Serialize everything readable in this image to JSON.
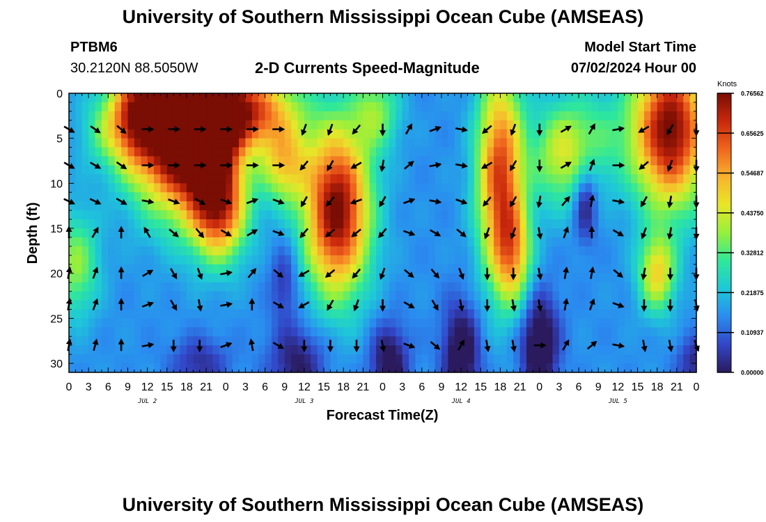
{
  "header": {
    "title": "University of Southern Mississippi Ocean Cube (AMSEAS)",
    "station_id": "PTBM6",
    "station_coords": "30.2120N  88.5050W",
    "product": "2-D Currents Speed-Magnitude",
    "model_start_label": "Model Start Time",
    "model_start_value": "07/02/2024 Hour 00"
  },
  "footer": {
    "title_repeat": "University of Southern Mississippi Ocean Cube (AMSEAS)"
  },
  "chart_data": {
    "type": "heatmap",
    "title": "2-D Currents Speed-Magnitude",
    "xlabel": "Forecast Time(Z)",
    "ylabel": "Depth (ft)",
    "x_hours_range": [
      0,
      96
    ],
    "ylim": [
      0,
      31
    ],
    "x_tick_labels": [
      "0",
      "3",
      "6",
      "9",
      "12",
      "15",
      "18",
      "21",
      "0",
      "3",
      "6",
      "9",
      "12",
      "15",
      "18",
      "21",
      "0",
      "3",
      "6",
      "9",
      "12",
      "15",
      "18",
      "21",
      "0",
      "3",
      "6",
      "9",
      "12",
      "15",
      "18",
      "21",
      "0"
    ],
    "y_ticks": [
      0,
      5,
      10,
      15,
      20,
      25,
      30
    ],
    "y_tick_labels": [
      "0",
      "5",
      "10",
      "15",
      "20",
      "25",
      "30"
    ],
    "date_labels": [
      {
        "text": "JUL 2",
        "hour": 12
      },
      {
        "text": "JUL 3",
        "hour": 36
      },
      {
        "text": "JUL 4",
        "hour": 60
      },
      {
        "text": "JUL 5",
        "hour": 84
      }
    ],
    "colorbar": {
      "unit": "Knots",
      "min": 0.0,
      "max": 0.76562,
      "tick_values": [
        0.76562,
        0.65625,
        0.54687,
        0.4375,
        0.32812,
        0.21875,
        0.10937,
        0.0
      ],
      "tick_labels": [
        "0.76562",
        "0.65625",
        "0.54687",
        "0.43750",
        "0.32812",
        "0.21875",
        "0.10937",
        "0.00000"
      ],
      "stops": [
        "#2b1a5e",
        "#3246c8",
        "#2a8cf0",
        "#1ec8d8",
        "#2fe89a",
        "#96f03c",
        "#e8e628",
        "#f8b22e",
        "#f0661e",
        "#c8280c",
        "#7a0d04"
      ]
    },
    "speed_blobs": [
      {
        "t": 17,
        "d": 4,
        "st": 5,
        "sd": 6,
        "a": 0.78
      },
      {
        "t": 10,
        "d": 2,
        "st": 2.5,
        "sd": 4,
        "a": 0.32
      },
      {
        "t": 22,
        "d": 3,
        "st": 3,
        "sd": 6,
        "a": 0.38
      },
      {
        "t": 23,
        "d": 13,
        "st": 3,
        "sd": 4,
        "a": 0.42
      },
      {
        "t": 28,
        "d": 2,
        "st": 5,
        "sd": 3,
        "a": 0.45
      },
      {
        "t": 33,
        "d": 8,
        "st": 2.5,
        "sd": 3,
        "a": 0.3
      },
      {
        "t": 41,
        "d": 13,
        "st": 3.5,
        "sd": 6.5,
        "a": 0.62
      },
      {
        "t": 47,
        "d": 2,
        "st": 2.5,
        "sd": 3,
        "a": 0.2
      },
      {
        "t": 66,
        "d": 9,
        "st": 2.5,
        "sd": 8,
        "a": 0.5
      },
      {
        "t": 68,
        "d": 18,
        "st": 2,
        "sd": 4,
        "a": 0.28
      },
      {
        "t": 92,
        "d": 4,
        "st": 4,
        "sd": 6,
        "a": 0.62
      },
      {
        "t": 90,
        "d": 20,
        "st": 2,
        "sd": 3,
        "a": 0.32
      },
      {
        "t": 1,
        "d": 19,
        "st": 2.5,
        "sd": 4,
        "a": 0.22
      },
      {
        "t": 6,
        "d": 4,
        "st": 3,
        "sd": 3,
        "a": 0.15
      },
      {
        "t": 75,
        "d": 7,
        "st": 3,
        "sd": 4,
        "a": 0.22
      },
      {
        "t": 80,
        "d": 5,
        "st": 4,
        "sd": 4,
        "a": 0.14
      }
    ],
    "low_blobs": [
      {
        "t": 35,
        "d": 30,
        "st": 3,
        "sd": 3,
        "a": 0.16
      },
      {
        "t": 49,
        "d": 30,
        "st": 2,
        "sd": 3,
        "a": 0.2
      },
      {
        "t": 60,
        "d": 29,
        "st": 2,
        "sd": 4,
        "a": 0.22
      },
      {
        "t": 72,
        "d": 28,
        "st": 2,
        "sd": 4,
        "a": 0.24
      },
      {
        "t": 79,
        "d": 12,
        "st": 1.2,
        "sd": 3,
        "a": 0.18
      },
      {
        "t": 33,
        "d": 21,
        "st": 1.5,
        "sd": 3,
        "a": 0.12
      },
      {
        "t": 20,
        "d": 30,
        "st": 3,
        "sd": 2,
        "a": 0.12
      },
      {
        "t": 96,
        "d": 30,
        "st": 2,
        "sd": 2,
        "a": 0.14
      }
    ],
    "vector_depths_ft": [
      4,
      8,
      12,
      15.5,
      20,
      23.5,
      28
    ],
    "vector_angles_deg": {
      "0": [
        -30,
        -30,
        -25,
        90,
        80,
        80,
        80
      ],
      "4": [
        -35,
        -30,
        -25,
        60,
        70,
        70,
        75
      ],
      "8": [
        -40,
        -35,
        -30,
        90,
        90,
        90,
        90
      ],
      "12": [
        0,
        0,
        -10,
        120,
        30,
        20,
        10
      ],
      "16": [
        0,
        0,
        -20,
        -40,
        -60,
        -60,
        -90
      ],
      "20": [
        0,
        0,
        -30,
        -50,
        -70,
        -80,
        -90
      ],
      "24": [
        0,
        0,
        -20,
        -30,
        10,
        10,
        20
      ],
      "28": [
        0,
        0,
        20,
        30,
        50,
        90,
        100
      ],
      "32": [
        0,
        0,
        -20,
        -20,
        -40,
        -30,
        -30
      ],
      "36": [
        -110,
        -130,
        -120,
        -130,
        -150,
        -150,
        -90
      ],
      "40": [
        -110,
        -120,
        -130,
        -140,
        -140,
        -120,
        -90
      ],
      "44": [
        -130,
        -150,
        -160,
        -140,
        -130,
        -110,
        -90
      ],
      "48": [
        -90,
        -100,
        -120,
        -130,
        -110,
        -90,
        -80
      ],
      "52": [
        60,
        40,
        20,
        -20,
        -40,
        -30,
        -20
      ],
      "56": [
        20,
        10,
        -10,
        -30,
        -50,
        -60,
        -40
      ],
      "60": [
        -10,
        -10,
        -20,
        -40,
        -70,
        -80,
        60
      ],
      "64": [
        -140,
        -150,
        -130,
        -110,
        -90,
        -90,
        -80
      ],
      "68": [
        -110,
        -120,
        -120,
        -110,
        -90,
        -80,
        -80
      ],
      "72": [
        -90,
        -90,
        -100,
        -80,
        -80,
        -80,
        0
      ],
      "76": [
        30,
        30,
        50,
        70,
        80,
        80,
        60
      ],
      "80": [
        60,
        70,
        80,
        90,
        80,
        70,
        40
      ],
      "84": [
        10,
        0,
        -10,
        -30,
        -40,
        -20,
        -10
      ],
      "88": [
        -150,
        -140,
        -120,
        -110,
        -100,
        -90,
        -80
      ],
      "92": [
        -120,
        -110,
        -100,
        -100,
        -90,
        -90,
        -80
      ],
      "96": [
        -90,
        -90,
        -90,
        -90,
        -90,
        -80,
        -70
      ]
    }
  }
}
